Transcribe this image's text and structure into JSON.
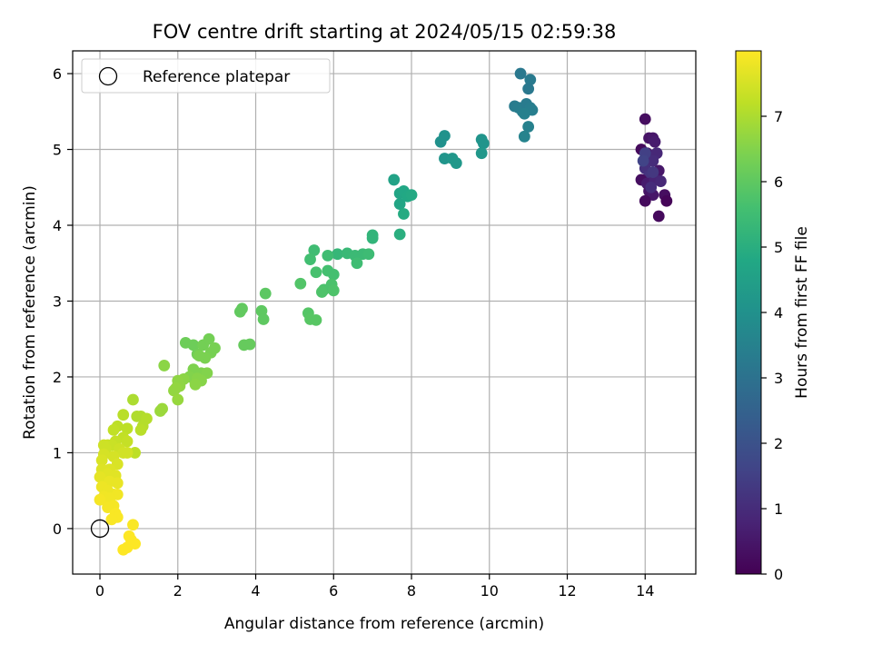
{
  "chart_data": {
    "type": "scatter",
    "title": "FOV centre drift starting at 2024/05/15 02:59:38",
    "xlabel": "Angular distance from reference (arcmin)",
    "ylabel": "Rotation from reference (arcmin)",
    "xlim": [
      -0.7,
      15.3
    ],
    "ylim": [
      -0.6,
      6.3
    ],
    "xticks": [
      0,
      2,
      4,
      6,
      8,
      10,
      12,
      14
    ],
    "yticks": [
      0,
      1,
      2,
      3,
      4,
      5,
      6
    ],
    "grid": true,
    "legend": {
      "placement": "top-left",
      "entries": [
        {
          "label": "Reference platepar",
          "marker": "open-circle"
        }
      ]
    },
    "reference_point": {
      "name": "Reference platepar",
      "x": 0,
      "y": 0
    },
    "colorbar": {
      "label": "Hours from first FF file",
      "colormap": "viridis",
      "range": [
        0,
        8.0
      ],
      "ticks": [
        0,
        1,
        2,
        3,
        4,
        5,
        6,
        7
      ]
    },
    "points": [
      [
        14.0,
        5.4,
        0.3
      ],
      [
        14.1,
        5.15,
        0.4
      ],
      [
        14.2,
        5.15,
        0.5
      ],
      [
        14.25,
        5.1,
        0.6
      ],
      [
        13.9,
        5.0,
        0.2
      ],
      [
        14.05,
        4.95,
        0.7
      ],
      [
        14.15,
        4.9,
        0.8
      ],
      [
        14.3,
        4.95,
        0.9
      ],
      [
        14.2,
        4.85,
        1.0
      ],
      [
        14.0,
        4.75,
        1.1
      ],
      [
        14.1,
        4.65,
        1.2
      ],
      [
        14.35,
        4.72,
        0.5
      ],
      [
        13.9,
        4.6,
        0.3
      ],
      [
        14.05,
        4.55,
        0.6
      ],
      [
        14.25,
        4.6,
        0.8
      ],
      [
        14.4,
        4.58,
        0.9
      ],
      [
        14.1,
        4.45,
        0.4
      ],
      [
        14.2,
        4.4,
        0.5
      ],
      [
        14.0,
        4.32,
        0.2
      ],
      [
        14.5,
        4.4,
        0.3
      ],
      [
        14.55,
        4.32,
        0.1
      ],
      [
        14.35,
        4.12,
        0.2
      ],
      [
        14.15,
        4.5,
        1.0
      ],
      [
        14.2,
        4.7,
        1.3
      ],
      [
        14.0,
        4.95,
        1.5
      ],
      [
        13.95,
        4.85,
        1.6
      ],
      [
        10.8,
        6.0,
        3.2
      ],
      [
        11.05,
        5.92,
        3.25
      ],
      [
        10.65,
        5.57,
        3.3
      ],
      [
        10.75,
        5.55,
        3.35
      ],
      [
        10.85,
        5.5,
        3.4
      ],
      [
        10.95,
        5.6,
        3.3
      ],
      [
        11.05,
        5.55,
        3.35
      ],
      [
        11.1,
        5.52,
        3.4
      ],
      [
        10.9,
        5.47,
        3.45
      ],
      [
        11.0,
        5.8,
        3.2
      ],
      [
        11.0,
        5.3,
        3.5
      ],
      [
        10.9,
        5.17,
        3.55
      ],
      [
        8.75,
        5.1,
        4.0
      ],
      [
        8.85,
        5.18,
        4.05
      ],
      [
        9.8,
        5.13,
        4.1
      ],
      [
        9.85,
        5.08,
        4.1
      ],
      [
        8.85,
        4.88,
        4.15
      ],
      [
        9.05,
        4.88,
        4.2
      ],
      [
        9.15,
        4.82,
        4.25
      ],
      [
        9.8,
        4.95,
        4.2
      ],
      [
        7.55,
        4.6,
        4.6
      ],
      [
        7.7,
        4.42,
        4.7
      ],
      [
        7.8,
        4.45,
        4.75
      ],
      [
        7.9,
        4.38,
        4.8
      ],
      [
        8.0,
        4.4,
        4.85
      ],
      [
        7.7,
        4.28,
        4.7
      ],
      [
        7.8,
        4.15,
        4.9
      ],
      [
        7.7,
        3.88,
        5.0
      ],
      [
        7.0,
        3.87,
        5.2
      ],
      [
        7.0,
        3.83,
        5.2
      ],
      [
        6.1,
        3.62,
        5.3
      ],
      [
        6.35,
        3.63,
        5.35
      ],
      [
        6.55,
        3.6,
        5.4
      ],
      [
        6.75,
        3.62,
        5.4
      ],
      [
        6.9,
        3.62,
        5.45
      ],
      [
        5.85,
        3.6,
        5.5
      ],
      [
        5.5,
        3.67,
        5.5
      ],
      [
        5.4,
        3.55,
        5.55
      ],
      [
        6.6,
        3.5,
        5.5
      ],
      [
        5.85,
        3.4,
        5.6
      ],
      [
        6.0,
        3.35,
        5.6
      ],
      [
        5.55,
        3.38,
        5.65
      ],
      [
        5.95,
        3.22,
        5.7
      ],
      [
        5.75,
        3.15,
        5.7
      ],
      [
        5.7,
        3.12,
        5.75
      ],
      [
        6.0,
        3.14,
        5.75
      ],
      [
        5.15,
        3.23,
        5.8
      ],
      [
        5.35,
        2.84,
        5.85
      ],
      [
        5.4,
        2.76,
        5.9
      ],
      [
        5.55,
        2.75,
        5.9
      ],
      [
        4.25,
        3.1,
        5.95
      ],
      [
        4.15,
        2.87,
        6.0
      ],
      [
        4.2,
        2.76,
        6.0
      ],
      [
        3.6,
        2.86,
        6.05
      ],
      [
        3.65,
        2.9,
        6.05
      ],
      [
        3.7,
        2.42,
        6.1
      ],
      [
        3.85,
        2.43,
        6.1
      ],
      [
        2.2,
        2.45,
        6.2
      ],
      [
        2.4,
        2.42,
        6.2
      ],
      [
        2.5,
        2.3,
        6.25
      ],
      [
        2.65,
        2.42,
        6.3
      ],
      [
        2.8,
        2.5,
        6.3
      ],
      [
        2.85,
        2.32,
        6.35
      ],
      [
        2.95,
        2.38,
        6.35
      ],
      [
        2.7,
        2.25,
        6.4
      ],
      [
        2.55,
        2.28,
        6.4
      ],
      [
        2.4,
        2.1,
        6.45
      ],
      [
        2.6,
        2.05,
        6.45
      ],
      [
        2.75,
        2.05,
        6.5
      ],
      [
        2.3,
        2.0,
        6.5
      ],
      [
        2.5,
        1.98,
        6.55
      ],
      [
        2.6,
        1.95,
        6.55
      ],
      [
        2.15,
        1.97,
        6.6
      ],
      [
        2.45,
        1.9,
        6.6
      ],
      [
        2.0,
        1.95,
        6.65
      ],
      [
        2.05,
        1.88,
        6.65
      ],
      [
        1.95,
        1.85,
        6.7
      ],
      [
        1.9,
        1.82,
        6.7
      ],
      [
        2.0,
        1.7,
        6.75
      ],
      [
        1.65,
        2.15,
        6.6
      ],
      [
        1.55,
        1.55,
        6.8
      ],
      [
        1.6,
        1.58,
        6.8
      ],
      [
        0.85,
        1.7,
        7.0
      ],
      [
        0.95,
        1.48,
        7.05
      ],
      [
        1.05,
        1.48,
        7.05
      ],
      [
        1.2,
        1.45,
        7.1
      ],
      [
        1.1,
        1.35,
        7.1
      ],
      [
        1.05,
        1.3,
        7.15
      ],
      [
        0.9,
        1.0,
        7.2
      ],
      [
        0.6,
        1.5,
        7.15
      ],
      [
        0.7,
        1.32,
        7.2
      ],
      [
        0.45,
        1.35,
        7.2
      ],
      [
        0.35,
        1.3,
        7.25
      ],
      [
        0.6,
        1.2,
        7.25
      ],
      [
        0.7,
        1.15,
        7.3
      ],
      [
        0.4,
        1.15,
        7.3
      ],
      [
        0.3,
        1.1,
        7.35
      ],
      [
        0.2,
        1.1,
        7.35
      ],
      [
        0.1,
        1.1,
        7.4
      ],
      [
        0.15,
        1.05,
        7.4
      ],
      [
        0.5,
        1.05,
        7.4
      ],
      [
        0.6,
        1.0,
        7.45
      ],
      [
        0.7,
        1.0,
        7.45
      ],
      [
        0.35,
        0.95,
        7.5
      ],
      [
        0.1,
        0.98,
        7.5
      ],
      [
        0.05,
        0.9,
        7.55
      ],
      [
        0.45,
        0.85,
        7.55
      ],
      [
        0.25,
        0.78,
        7.6
      ],
      [
        0.05,
        0.78,
        7.6
      ],
      [
        0.2,
        0.72,
        7.65
      ],
      [
        0.4,
        0.7,
        7.65
      ],
      [
        0.0,
        0.68,
        7.7
      ],
      [
        0.15,
        0.6,
        7.7
      ],
      [
        0.25,
        0.62,
        7.75
      ],
      [
        0.45,
        0.6,
        7.75
      ],
      [
        0.05,
        0.55,
        7.8
      ],
      [
        0.2,
        0.5,
        7.8
      ],
      [
        0.35,
        0.45,
        7.8
      ],
      [
        0.45,
        0.45,
        7.85
      ],
      [
        0.1,
        0.42,
        7.85
      ],
      [
        0.25,
        0.4,
        7.85
      ],
      [
        0.0,
        0.38,
        7.9
      ],
      [
        0.35,
        0.3,
        7.9
      ],
      [
        0.2,
        0.28,
        7.9
      ],
      [
        0.4,
        0.2,
        7.95
      ],
      [
        0.45,
        0.15,
        7.95
      ],
      [
        0.3,
        0.12,
        7.95
      ],
      [
        0.85,
        0.05,
        7.95
      ],
      [
        0.8,
        -0.15,
        8.0
      ],
      [
        0.9,
        -0.2,
        8.0
      ],
      [
        0.7,
        -0.25,
        8.0
      ],
      [
        0.6,
        -0.28,
        8.0
      ],
      [
        0.75,
        -0.1,
        8.0
      ]
    ]
  }
}
